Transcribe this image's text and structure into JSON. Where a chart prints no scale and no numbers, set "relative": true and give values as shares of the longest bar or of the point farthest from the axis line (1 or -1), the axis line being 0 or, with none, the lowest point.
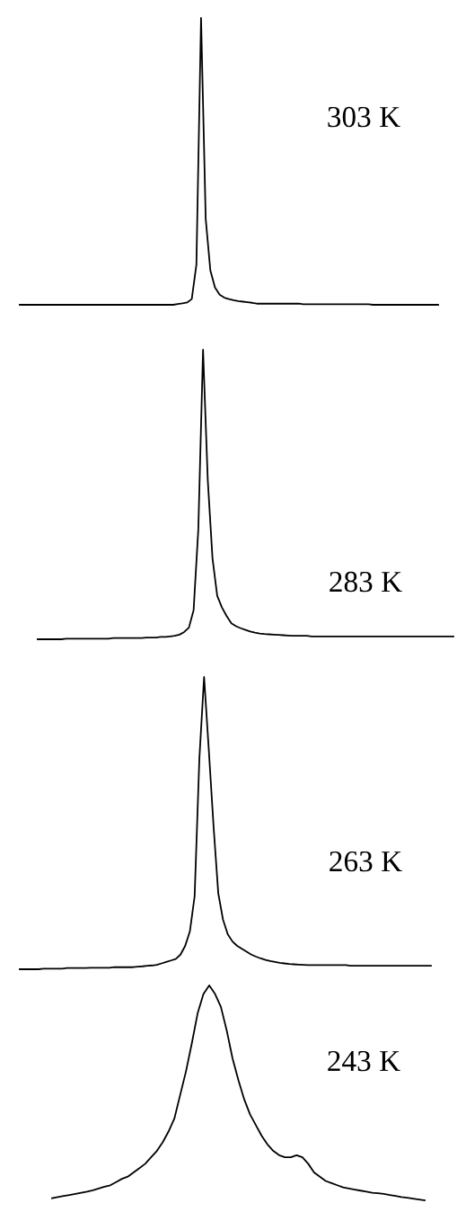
{
  "chart_data": [
    {
      "type": "line",
      "relative": true,
      "categories": [
        null,
        null,
        null,
        null,
        null,
        null,
        null,
        null,
        null,
        null,
        null,
        null,
        null,
        null,
        null,
        null,
        null,
        null,
        null,
        null,
        null,
        null,
        null,
        null,
        null,
        null,
        null,
        null,
        null,
        null,
        null,
        null,
        null,
        null,
        null,
        null,
        null,
        null,
        null,
        null,
        null,
        null,
        null,
        null,
        null,
        null,
        null,
        null,
        null,
        null,
        null,
        null,
        null,
        null,
        null,
        null,
        null,
        null,
        null,
        null,
        null,
        null,
        null,
        null,
        null,
        null,
        null,
        null,
        null,
        null,
        null,
        null,
        null,
        null,
        null,
        null,
        null,
        null,
        null,
        null,
        null,
        null,
        null,
        null,
        null,
        null,
        null,
        null,
        null,
        null,
        null
      ],
      "series": [
        {
          "name": "303 K",
          "color": "#000000",
          "values": [
            0,
            0,
            0,
            0,
            0,
            0,
            0,
            0,
            0,
            0,
            0,
            0,
            0,
            0,
            0,
            0,
            0,
            0,
            0,
            0,
            0,
            0,
            0,
            0,
            0,
            0,
            0,
            0,
            0,
            0,
            0,
            0,
            0,
            0,
            0.003,
            0.005,
            0.008,
            0.02,
            0.14,
            1,
            0.3,
            0.12,
            0.06,
            0.035,
            0.025,
            0.02,
            0.016,
            0.013,
            0.011,
            0.009,
            0.007,
            0.004,
            0.004,
            0.004,
            0.004,
            0.004,
            0.004,
            0.004,
            0.004,
            0.004,
            0.004,
            0.002,
            0.002,
            0.002,
            0.002,
            0.002,
            0.002,
            0.002,
            0.002,
            0.002,
            0.002,
            0.002,
            0.002,
            0.002,
            0.002,
            0.002,
            0,
            0,
            0,
            0,
            0,
            0,
            0,
            0,
            0,
            0,
            0,
            0,
            0,
            0,
            0
          ]
        }
      ]
    },
    {
      "type": "line",
      "relative": true,
      "categories": [
        null,
        null,
        null,
        null,
        null,
        null,
        null,
        null,
        null,
        null,
        null,
        null,
        null,
        null,
        null,
        null,
        null,
        null,
        null,
        null,
        null,
        null,
        null,
        null,
        null,
        null,
        null,
        null,
        null,
        null,
        null,
        null,
        null,
        null,
        null,
        null,
        null,
        null,
        null,
        null,
        null,
        null,
        null,
        null,
        null,
        null,
        null,
        null,
        null,
        null,
        null,
        null,
        null,
        null,
        null,
        null,
        null,
        null,
        null,
        null,
        null,
        null,
        null,
        null,
        null,
        null,
        null,
        null,
        null,
        null,
        null,
        null,
        null,
        null,
        null,
        null,
        null,
        null,
        null,
        null,
        null,
        null,
        null,
        null,
        null,
        null,
        null,
        null,
        null
      ],
      "series": [
        {
          "name": "283 K",
          "color": "#000000",
          "values": [
            0,
            0,
            0,
            0,
            0,
            0,
            0.002,
            0.002,
            0.002,
            0.002,
            0.002,
            0.002,
            0.002,
            0.002,
            0.002,
            0.002,
            0.004,
            0.004,
            0.004,
            0.004,
            0.004,
            0.004,
            0.004,
            0.006,
            0.006,
            0.006,
            0.008,
            0.008,
            0.01,
            0.012,
            0.016,
            0.025,
            0.04,
            0.1,
            0.38,
            1,
            0.55,
            0.28,
            0.15,
            0.11,
            0.08,
            0.055,
            0.045,
            0.038,
            0.032,
            0.027,
            0.023,
            0.02,
            0.018,
            0.017,
            0.016,
            0.015,
            0.014,
            0.013,
            0.012,
            0.012,
            0.012,
            0.012,
            0.01,
            0.01,
            0.01,
            0.01,
            0.01,
            0.01,
            0.01,
            0.01,
            0.01,
            0.01,
            0.01,
            0.01,
            0.01,
            0.01,
            0.01,
            0.01,
            0.01,
            0.01,
            0.01,
            0.01,
            0.01,
            0.01,
            0.01,
            0.01,
            0.01,
            0.01,
            0.01,
            0.01,
            0.01,
            0.01,
            0.01
          ]
        }
      ]
    },
    {
      "type": "line",
      "relative": true,
      "categories": [
        null,
        null,
        null,
        null,
        null,
        null,
        null,
        null,
        null,
        null,
        null,
        null,
        null,
        null,
        null,
        null,
        null,
        null,
        null,
        null,
        null,
        null,
        null,
        null,
        null,
        null,
        null,
        null,
        null,
        null,
        null,
        null,
        null,
        null,
        null,
        null,
        null,
        null,
        null,
        null,
        null,
        null,
        null,
        null,
        null,
        null,
        null,
        null,
        null,
        null,
        null,
        null,
        null,
        null,
        null,
        null,
        null,
        null,
        null,
        null,
        null,
        null,
        null,
        null,
        null,
        null,
        null,
        null,
        null,
        null,
        null,
        null,
        null,
        null,
        null,
        null,
        null,
        null,
        null,
        null,
        null,
        null,
        null,
        null,
        null,
        null,
        null,
        null
      ],
      "series": [
        {
          "name": "263 K",
          "color": "#000000",
          "values": [
            0,
            0,
            0,
            0,
            0,
            0.002,
            0.002,
            0.002,
            0.002,
            0.002,
            0.004,
            0.004,
            0.004,
            0.004,
            0.004,
            0.005,
            0.005,
            0.005,
            0.005,
            0.005,
            0.007,
            0.007,
            0.007,
            0.007,
            0.007,
            0.009,
            0.01,
            0.012,
            0.013,
            0.015,
            0.02,
            0.025,
            0.03,
            0.035,
            0.05,
            0.08,
            0.13,
            0.25,
            0.72,
            1,
            0.75,
            0.49,
            0.26,
            0.17,
            0.12,
            0.095,
            0.08,
            0.07,
            0.06,
            0.05,
            0.043,
            0.037,
            0.032,
            0.028,
            0.025,
            0.022,
            0.02,
            0.018,
            0.017,
            0.016,
            0.015,
            0.014,
            0.014,
            0.014,
            0.014,
            0.014,
            0.014,
            0.014,
            0.014,
            0.014,
            0.012,
            0.012,
            0.012,
            0.012,
            0.012,
            0.012,
            0.012,
            0.012,
            0.012,
            0.012,
            0.012,
            0.012,
            0.012,
            0.012,
            0.012,
            0.012,
            0.012,
            0.012
          ]
        }
      ]
    },
    {
      "type": "line",
      "relative": true,
      "categories": [
        null,
        null,
        null,
        null,
        null,
        null,
        null,
        null,
        null,
        null,
        null,
        null,
        null,
        null,
        null,
        null,
        null,
        null,
        null,
        null,
        null,
        null,
        null,
        null,
        null,
        null,
        null,
        null,
        null,
        null,
        null,
        null,
        null,
        null,
        null,
        null,
        null,
        null,
        null,
        null,
        null,
        null,
        null,
        null,
        null,
        null,
        null,
        null,
        null,
        null,
        null,
        null,
        null,
        null,
        null,
        null,
        null,
        null,
        null,
        null,
        null,
        null,
        null,
        null,
        null
      ],
      "series": [
        {
          "name": "243 K",
          "color": "#000000",
          "values": [
            0.01,
            0.015,
            0.02,
            0.025,
            0.03,
            0.035,
            0.04,
            0.047,
            0.055,
            0.063,
            0.07,
            0.085,
            0.1,
            0.11,
            0.13,
            0.15,
            0.17,
            0.2,
            0.23,
            0.27,
            0.32,
            0.38,
            0.49,
            0.6,
            0.73,
            0.87,
            0.96,
            1,
            0.96,
            0.9,
            0.79,
            0.66,
            0.56,
            0.47,
            0.4,
            0.35,
            0.3,
            0.26,
            0.23,
            0.21,
            0.2,
            0.2,
            0.21,
            0.2,
            0.17,
            0.13,
            0.11,
            0.09,
            0.08,
            0.07,
            0.06,
            0.055,
            0.05,
            0.045,
            0.04,
            0.035,
            0.033,
            0.03,
            0.025,
            0.02,
            0.015,
            0.012,
            0.008,
            0.004,
            0
          ]
        }
      ]
    }
  ]
}
